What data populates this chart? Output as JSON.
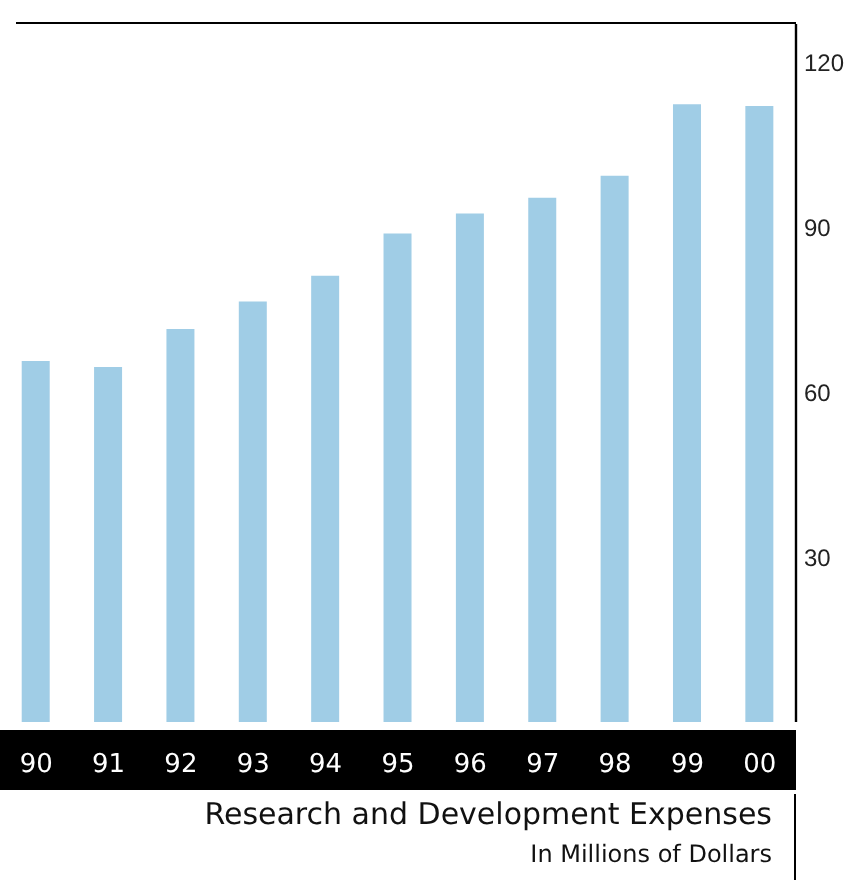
{
  "chart_data": {
    "type": "bar",
    "title": "Research and Development Expenses",
    "subtitle": "In Millions of Dollars",
    "categories": [
      "90",
      "91",
      "92",
      "93",
      "94",
      "95",
      "96",
      "97",
      "98",
      "99",
      "00"
    ],
    "values": [
      65.7,
      64.6,
      71.5,
      76.5,
      81.2,
      88.9,
      92.5,
      95.4,
      99.4,
      112.4,
      112.1
    ],
    "color": "#a0cde6",
    "ylim": [
      0,
      127
    ],
    "yticks": [
      30,
      60,
      90,
      120
    ],
    "grid": false
  }
}
